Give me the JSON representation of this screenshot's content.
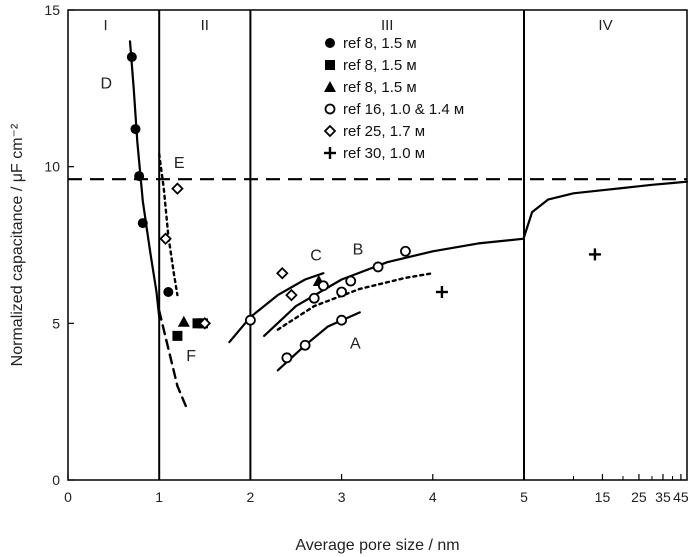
{
  "chart_data": {
    "type": "scatter",
    "title": "",
    "xlabel": "Average pore size / nm",
    "ylabel": "Normalized capacitance / μF cm⁻²",
    "ylim": [
      0,
      15
    ],
    "yticks": [
      0,
      5,
      10,
      15
    ],
    "xtick_labels": [
      "0",
      "1",
      "2",
      "3",
      "4",
      "5",
      "15",
      "25",
      "35",
      "45"
    ],
    "x_axis_note": "axis is linear from 0 to 5 nm, then compressed from 5 to about 50 nm",
    "region_labels": [
      "I",
      "II",
      "III",
      "IV"
    ],
    "region_boundaries": [
      1,
      2,
      5
    ],
    "reference_line": {
      "y": 9.6,
      "style": "dashed"
    },
    "curve_labels": [
      "A",
      "B",
      "C",
      "D",
      "E",
      "F"
    ],
    "legend_position": "top-center",
    "series": [
      {
        "name": "ref 8, 1.5 м",
        "marker": "filled-circle",
        "points": [
          [
            0.7,
            13.5
          ],
          [
            0.74,
            11.2
          ],
          [
            0.78,
            9.7
          ],
          [
            0.82,
            8.2
          ],
          [
            1.1,
            6.0
          ]
        ]
      },
      {
        "name": "ref 8, 1.5 м",
        "marker": "filled-square",
        "points": [
          [
            1.2,
            4.6
          ],
          [
            1.42,
            5.0
          ],
          [
            1.48,
            5.0
          ]
        ]
      },
      {
        "name": "ref 8, 1.5 м",
        "marker": "filled-triangle",
        "points": [
          [
            1.27,
            5.05
          ],
          [
            2.75,
            6.35
          ]
        ]
      },
      {
        "name": "ref 16, 1.0 & 1.4 м",
        "marker": "open-circle",
        "points": [
          [
            2.0,
            5.1
          ],
          [
            2.4,
            3.9
          ],
          [
            2.6,
            4.3
          ],
          [
            2.7,
            5.8
          ],
          [
            2.8,
            6.2
          ],
          [
            3.0,
            6.0
          ],
          [
            3.1,
            6.35
          ],
          [
            3.0,
            5.1
          ],
          [
            3.4,
            6.8
          ],
          [
            3.7,
            7.3
          ]
        ]
      },
      {
        "name": "ref 25, 1.7 м",
        "marker": "open-diamond",
        "points": [
          [
            1.07,
            7.7
          ],
          [
            1.2,
            9.3
          ],
          [
            1.5,
            5.0
          ],
          [
            2.35,
            6.6
          ],
          [
            2.45,
            5.9
          ]
        ]
      },
      {
        "name": "ref 30, 1.0 м",
        "marker": "plus",
        "points": [
          [
            4.1,
            6.0
          ],
          [
            13.5,
            7.2
          ]
        ]
      }
    ],
    "curves": [
      {
        "label": "A",
        "style": "solid",
        "points": [
          [
            2.3,
            3.5
          ],
          [
            2.6,
            4.3
          ],
          [
            2.85,
            4.9
          ],
          [
            3.2,
            5.35
          ]
        ]
      },
      {
        "label": "B",
        "style": "solid",
        "points": [
          [
            2.15,
            4.6
          ],
          [
            2.5,
            5.55
          ],
          [
            3.0,
            6.4
          ],
          [
            3.5,
            6.95
          ],
          [
            4.0,
            7.3
          ],
          [
            4.5,
            7.55
          ],
          [
            5.0,
            7.7
          ]
        ]
      },
      {
        "label": "C",
        "style": "solid",
        "points": [
          [
            1.77,
            4.4
          ],
          [
            2.0,
            5.2
          ],
          [
            2.3,
            5.9
          ],
          [
            2.6,
            6.4
          ],
          [
            2.8,
            6.6
          ]
        ]
      },
      {
        "label": "dotted trend",
        "style": "dotted",
        "points": [
          [
            2.3,
            4.8
          ],
          [
            2.7,
            5.55
          ],
          [
            3.2,
            6.1
          ],
          [
            3.7,
            6.45
          ],
          [
            4.0,
            6.6
          ]
        ]
      },
      {
        "label": "D",
        "style": "solid",
        "points": [
          [
            0.68,
            14.0
          ],
          [
            0.72,
            12.5
          ],
          [
            0.76,
            10.8
          ],
          [
            0.82,
            8.9
          ],
          [
            0.9,
            7.3
          ],
          [
            0.97,
            6.0
          ],
          [
            1.0,
            5.2
          ]
        ]
      },
      {
        "label": "E",
        "style": "dotted",
        "points": [
          [
            1.0,
            10.4
          ],
          [
            1.05,
            9.3
          ],
          [
            1.1,
            7.8
          ],
          [
            1.16,
            6.6
          ],
          [
            1.2,
            5.9
          ]
        ]
      },
      {
        "label": "F",
        "style": "dashed",
        "points": [
          [
            1.0,
            5.4
          ],
          [
            1.1,
            4.2
          ],
          [
            1.2,
            3.0
          ],
          [
            1.3,
            2.3
          ]
        ]
      },
      {
        "label": "IV curve",
        "style": "solid",
        "points": [
          [
            5.0,
            7.75
          ],
          [
            5.6,
            8.55
          ],
          [
            7,
            8.95
          ],
          [
            10,
            9.15
          ],
          [
            15,
            9.25
          ],
          [
            20,
            9.32
          ],
          [
            30,
            9.42
          ],
          [
            40,
            9.48
          ],
          [
            49,
            9.52
          ]
        ]
      }
    ]
  }
}
